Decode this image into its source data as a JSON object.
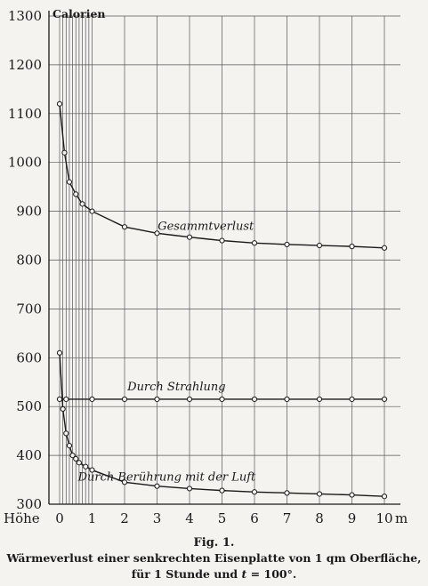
{
  "chart_data": {
    "type": "line",
    "ylabel": "Calorien",
    "xlabel": "Höhe",
    "x_unit": "m",
    "ylim": [
      300,
      1300
    ],
    "xlim": [
      0,
      10
    ],
    "yticks": [
      300,
      400,
      500,
      600,
      700,
      800,
      900,
      1000,
      1100,
      1200,
      1300
    ],
    "xticks": [
      0,
      1,
      2,
      3,
      4,
      5,
      6,
      7,
      8,
      9,
      10
    ],
    "x_vgrid": [
      0.1,
      0.2,
      0.3,
      0.4,
      0.5,
      0.6,
      0.7,
      0.8,
      0.9,
      1,
      2,
      3,
      4,
      5,
      6,
      7,
      8,
      9,
      10
    ],
    "grid": true,
    "series": [
      {
        "name": "Gesammtverlust",
        "x": [
          0,
          0.15,
          0.3,
          0.5,
          0.7,
          1,
          2,
          3,
          4,
          5,
          6,
          7,
          8,
          9,
          10
        ],
        "y": [
          1120,
          1020,
          960,
          935,
          915,
          900,
          868,
          855,
          847,
          840,
          835,
          832,
          830,
          828,
          825
        ]
      },
      {
        "name": "Durch Strahlung",
        "x": [
          0,
          0.2,
          1,
          2,
          3,
          4,
          5,
          6,
          7,
          8,
          9,
          10
        ],
        "y": [
          515,
          515,
          515,
          515,
          515,
          515,
          515,
          515,
          515,
          515,
          515,
          515
        ]
      },
      {
        "name": "Durch Berührung mit der Luft",
        "x": [
          0,
          0.1,
          0.2,
          0.3,
          0.4,
          0.5,
          0.6,
          0.8,
          1,
          2,
          3,
          4,
          5,
          6,
          7,
          8,
          9,
          10
        ],
        "y": [
          610,
          495,
          445,
          420,
          400,
          393,
          385,
          377,
          370,
          345,
          337,
          332,
          328,
          325,
          323,
          321,
          319,
          316
        ]
      }
    ]
  },
  "caption": {
    "fig_label": "Fig. 1.",
    "line1": "Wärmeverlust einer senkrechten Eisenplatte von 1 qm Oberfläche,",
    "line2_prefix": "für 1 Stunde und",
    "line2_var": "t",
    "line2_suffix": " = 100°."
  }
}
